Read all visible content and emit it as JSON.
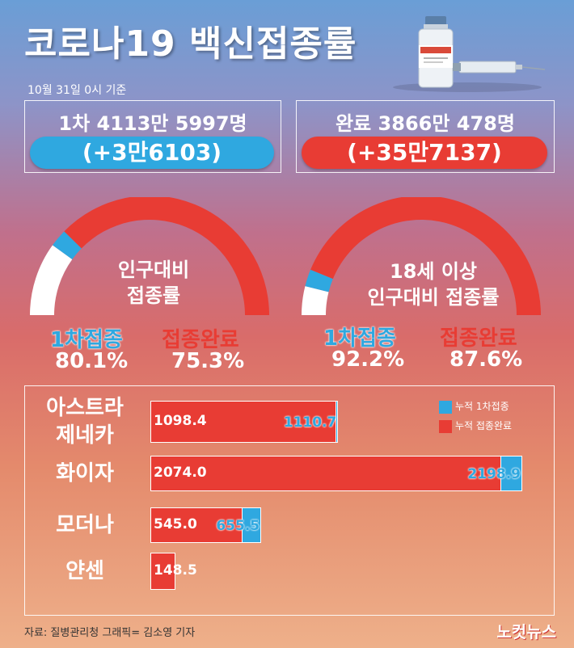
{
  "title": "코로나19 백신접종률",
  "date": "10월 31일 0시 기준",
  "summary": {
    "first": {
      "label": "1차 4113만 5997명",
      "change": "(+3만6103)"
    },
    "complete": {
      "label": "완료 3866만 478명",
      "change": "(+35만7137)"
    }
  },
  "gauges": [
    {
      "center_lines": [
        "인구대비",
        "접종률"
      ],
      "first_label": "1차접종",
      "first_value": "80.1%",
      "complete_label": "접종완료",
      "complete_value": "75.3%",
      "first_pct": 80.1,
      "complete_pct": 75.3
    },
    {
      "center_lines": [
        "18세 이상",
        "인구대비 접종률"
      ],
      "first_label": "1차접종",
      "first_value": "92.2%",
      "complete_label": "접종완료",
      "complete_value": "87.6%",
      "first_pct": 92.2,
      "complete_pct": 87.6
    }
  ],
  "legend": {
    "first": "누적 1차접종",
    "complete": "누적 접종완료"
  },
  "colors": {
    "first": "#2fa8e0",
    "complete": "#e83c34",
    "remainder": "#ffffff"
  },
  "chart_data": {
    "type": "bar",
    "orientation": "horizontal",
    "categories": [
      "아스트라\n제네카",
      "화이자",
      "모더나",
      "얀센"
    ],
    "series": [
      {
        "name": "누적 1차접종",
        "values": [
          1110.7,
          2198.9,
          655.5,
          148.5
        ]
      },
      {
        "name": "누적 접종완료",
        "values": [
          1098.4,
          2074.0,
          545.0,
          148.5
        ]
      }
    ],
    "value_labels_first": [
      "1110.7",
      "2198.9",
      "655.5",
      ""
    ],
    "value_labels_complete": [
      "1098.4",
      "2074.0",
      "545.0",
      "148.5"
    ],
    "xlim": [
      0,
      2198.9
    ]
  },
  "footer": "자료: 질병관리청   그래픽= 김소영 기자",
  "logo": "노컷뉴스"
}
